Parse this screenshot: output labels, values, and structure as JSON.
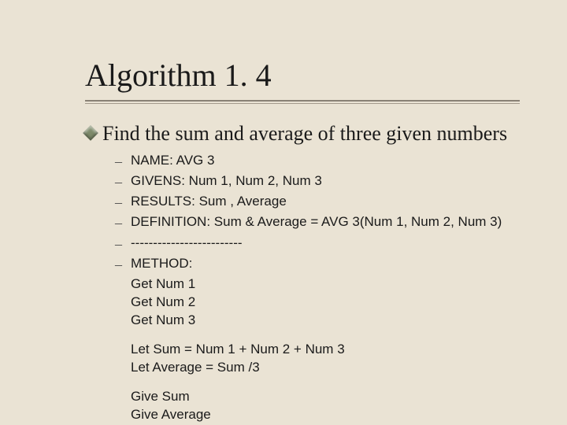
{
  "colors": {
    "background": "#eae3d4",
    "text": "#1a1a1a",
    "hr_dark": "#8a8276",
    "hr_light": "#a39a8c",
    "bullet_diamond": "#7d8a6a",
    "dash": "#4a4a4a"
  },
  "typography": {
    "title_font": "Times New Roman",
    "title_size_pt": 30,
    "body_serif_font": "Times New Roman",
    "body_serif_size_pt": 20,
    "body_sans_font": "Arial",
    "body_sans_size_pt": 13
  },
  "title": "Algorithm 1. 4",
  "main_bullet": "Find the sum and average of three given numbers",
  "spec_items": [
    "NAME: AVG 3",
    "GIVENS: Num 1, Num 2, Num 3",
    "RESULTS: Sum , Average",
    "DEFINITION: Sum & Average = AVG 3(Num 1, Num 2, Num 3)",
    "-------------------------",
    "METHOD:"
  ],
  "method_groups": [
    [
      "Get Num 1",
      "Get Num 2",
      "Get Num 3"
    ],
    [
      "Let Sum = Num 1 + Num 2 + Num 3",
      "Let Average = Sum /3"
    ],
    [
      "Give Sum",
      "Give Average"
    ]
  ]
}
